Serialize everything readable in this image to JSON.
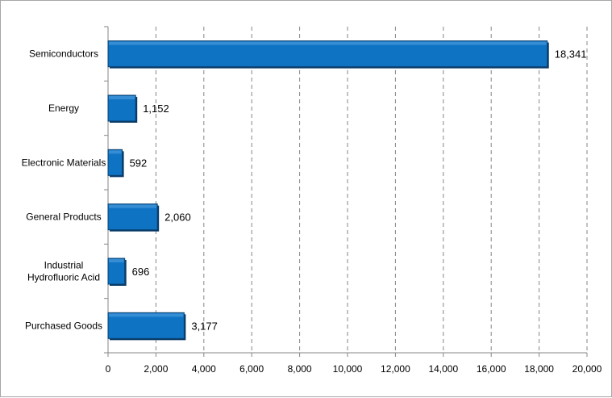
{
  "chart_data": {
    "type": "bar",
    "orientation": "horizontal",
    "title": "",
    "xlabel": "",
    "ylabel": "",
    "categories": [
      [
        "Semiconductors"
      ],
      [
        "Energy"
      ],
      [
        "Electronic Materials"
      ],
      [
        "General Products"
      ],
      [
        "Industrial",
        "Hydrofluoric Acid"
      ],
      [
        "Purchased Goods"
      ]
    ],
    "values": [
      18341,
      1152,
      592,
      2060,
      696,
      3177
    ],
    "value_labels": [
      "18,341",
      "1,152",
      "592",
      "2,060",
      "696",
      "3,177"
    ],
    "xlim": [
      0,
      20000
    ],
    "xticks": [
      0,
      2000,
      4000,
      6000,
      8000,
      10000,
      12000,
      14000,
      16000,
      18000,
      20000
    ],
    "xtick_labels": [
      "0",
      "2,000",
      "4,000",
      "6,000",
      "8,000",
      "10,000",
      "12,000",
      "14,000",
      "16,000",
      "18,000",
      "20,000"
    ],
    "grid": "vertical-dashed",
    "bar_color": "#0f73c4",
    "bar_edge_color": "#0a3f6e",
    "bar_shadow_color": "#083a67",
    "axis_color": "#868686",
    "grid_color": "#868686"
  }
}
